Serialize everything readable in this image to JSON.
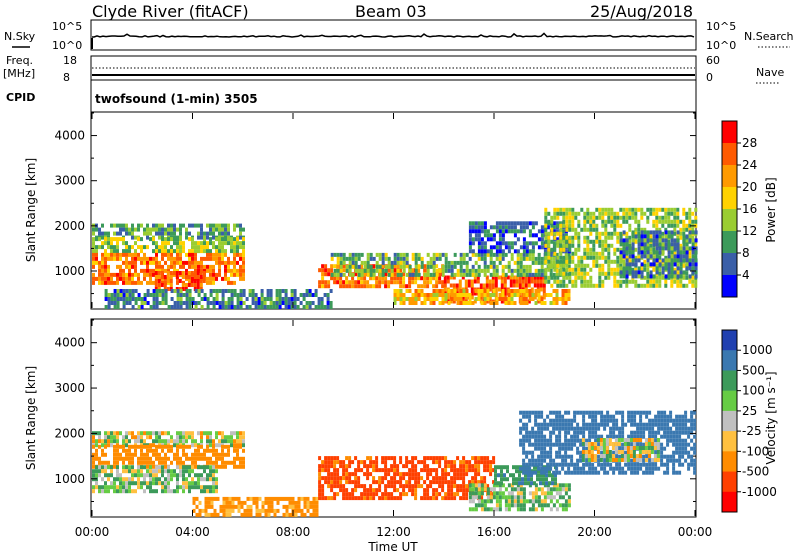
{
  "header": {
    "station": "Clyde River (fitACF)",
    "beam": "Beam 03",
    "date": "25/Aug/2018"
  },
  "top_panels": {
    "nsky_label": "N.Sky",
    "nsky_ticks": [
      "10^5",
      "10^0"
    ],
    "nsearch_label": "N.Search",
    "nsearch_ticks": [
      "10^5",
      "10^0"
    ],
    "freq_label": "Freq.",
    "freq_unit": "[MHz]",
    "freq_ticks": [
      "18",
      "8"
    ],
    "nave_label": "Nave",
    "nave_ticks": [
      "60",
      "0"
    ],
    "cpid_label": "CPID",
    "cpid_text": "twofsound (1-min) 3505"
  },
  "chart_data": [
    {
      "type": "heatmap",
      "name": "power",
      "ylabel": "Slant Range [km]",
      "ylim": [
        180,
        4500
      ],
      "yticks": [
        1000,
        2000,
        3000,
        4000
      ],
      "xlim": [
        0,
        24
      ],
      "colorbar": {
        "label": "Power [dB]",
        "ticks": [
          "28",
          "24",
          "20",
          "16",
          "12",
          "8",
          "4"
        ],
        "colors": [
          "#ff0000",
          "#ff5a00",
          "#ff9a00",
          "#ffd200",
          "#9acd32",
          "#3c9a5a",
          "#3a5fa8",
          "#0000ff"
        ]
      },
      "regions": [
        {
          "t0": 0.0,
          "t1": 6.0,
          "r0": 1750,
          "r1": 2050,
          "value": 10
        },
        {
          "t0": 0.0,
          "t1": 6.0,
          "r0": 1400,
          "r1": 1750,
          "value": 14
        },
        {
          "t0": 0.0,
          "t1": 6.0,
          "r0": 700,
          "r1": 1400,
          "value": 24
        },
        {
          "t0": 2.5,
          "t1": 4.5,
          "r0": 600,
          "r1": 1000,
          "value": 27
        },
        {
          "t0": 0.5,
          "t1": 9.5,
          "r0": 200,
          "r1": 600,
          "value": 8
        },
        {
          "t0": 9.0,
          "t1": 14.0,
          "r0": 700,
          "r1": 1150,
          "value": 24
        },
        {
          "t0": 14.0,
          "t1": 18.0,
          "r0": 300,
          "r1": 900,
          "value": 26
        },
        {
          "t0": 9.5,
          "t1": 19.0,
          "r0": 900,
          "r1": 1400,
          "value": 12
        },
        {
          "t0": 12.0,
          "t1": 19.0,
          "r0": 300,
          "r1": 600,
          "value": 20
        },
        {
          "t0": 15.0,
          "t1": 19.0,
          "r0": 1400,
          "r1": 2100,
          "value": 6
        },
        {
          "t0": 18.0,
          "t1": 24.0,
          "r0": 700,
          "r1": 2400,
          "value": 14
        },
        {
          "t0": 21.0,
          "t1": 24.0,
          "r0": 900,
          "r1": 1900,
          "value": 8
        }
      ]
    },
    {
      "type": "heatmap",
      "name": "velocity",
      "ylabel": "Slant Range [km]",
      "ylim": [
        180,
        4500
      ],
      "yticks": [
        1000,
        2000,
        3000,
        4000
      ],
      "xlim": [
        0,
        24
      ],
      "xticks": [
        "00:00",
        "04:00",
        "08:00",
        "12:00",
        "16:00",
        "20:00",
        "00:00"
      ],
      "xlabel": "Time UT",
      "colorbar": {
        "label": "Velocity [m s⁻¹]",
        "ticks": [
          "1000",
          "500",
          "100",
          "25",
          "-25",
          "-100",
          "-500",
          "-1000"
        ],
        "colors": [
          "#2040b0",
          "#3a78b0",
          "#3c9a5a",
          "#66cc44",
          "#c0c0c0",
          "#ffc040",
          "#ff8c00",
          "#ff4000",
          "#ff0000"
        ]
      },
      "regions": [
        {
          "t0": 0.0,
          "t1": 6.0,
          "r0": 1750,
          "r1": 2050,
          "value": 0
        },
        {
          "t0": 0.0,
          "t1": 6.0,
          "r0": 1300,
          "r1": 1750,
          "value": -300
        },
        {
          "t0": 0.0,
          "t1": 5.0,
          "r0": 700,
          "r1": 1300,
          "value": 80
        },
        {
          "t0": 4.0,
          "t1": 9.0,
          "r0": 200,
          "r1": 600,
          "value": -200
        },
        {
          "t0": 9.0,
          "t1": 16.0,
          "r0": 600,
          "r1": 1500,
          "value": -600
        },
        {
          "t0": 15.0,
          "t1": 19.0,
          "r0": 300,
          "r1": 900,
          "value": 80
        },
        {
          "t0": 16.0,
          "t1": 18.5,
          "r0": 900,
          "r1": 1300,
          "value": 400
        },
        {
          "t0": 17.0,
          "t1": 24.0,
          "r0": 1100,
          "r1": 2500,
          "value": 800
        },
        {
          "t0": 19.5,
          "t1": 22.5,
          "r0": 1400,
          "r1": 1900,
          "value": 0
        }
      ]
    }
  ]
}
